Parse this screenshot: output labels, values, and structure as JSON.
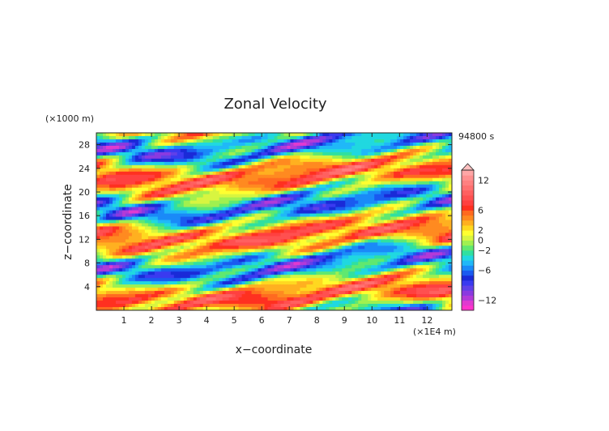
{
  "chart_data": {
    "type": "heatmap",
    "title": "Zonal Velocity",
    "xlabel": "x−coordinate",
    "ylabel": "z−coordinate",
    "x_unit": "(×1E4 m)",
    "y_unit": "(×1000 m)",
    "time_label": "94800 s",
    "xlim": [
      0,
      12.9
    ],
    "ylim": [
      0,
      30
    ],
    "x_ticks": [
      1,
      2,
      3,
      4,
      5,
      6,
      7,
      8,
      9,
      10,
      11,
      12
    ],
    "y_ticks": [
      4,
      8,
      12,
      16,
      20,
      24,
      28
    ],
    "colorbar": {
      "levels": [
        -14,
        -13,
        -12,
        -11,
        -10,
        -9,
        -8,
        -7,
        -6,
        -5,
        -4,
        -3,
        -2,
        -1,
        0,
        1,
        2,
        3,
        4,
        5,
        6,
        7,
        8,
        9,
        10,
        11,
        12,
        13,
        14
      ],
      "tick_labels": [
        12,
        6,
        2,
        0,
        -2,
        -6,
        -12
      ],
      "colors": [
        "#ff33cc",
        "#e03ad0",
        "#b23ad8",
        "#8a3ae0",
        "#6040e8",
        "#3a3af0",
        "#1a2ad8",
        "#1a5af0",
        "#1a8af8",
        "#20b8f8",
        "#20d8e0",
        "#30e0a0",
        "#60e870",
        "#a0f050",
        "#d8f540",
        "#ffff30",
        "#ffd820",
        "#ffb020",
        "#ff8a20",
        "#ff6a20",
        "#ff3020",
        "#ff4040",
        "#ff5050",
        "#ff6060",
        "#ff7070",
        "#ff8080",
        "#ff9090",
        "#ffa6a6"
      ]
    }
  }
}
